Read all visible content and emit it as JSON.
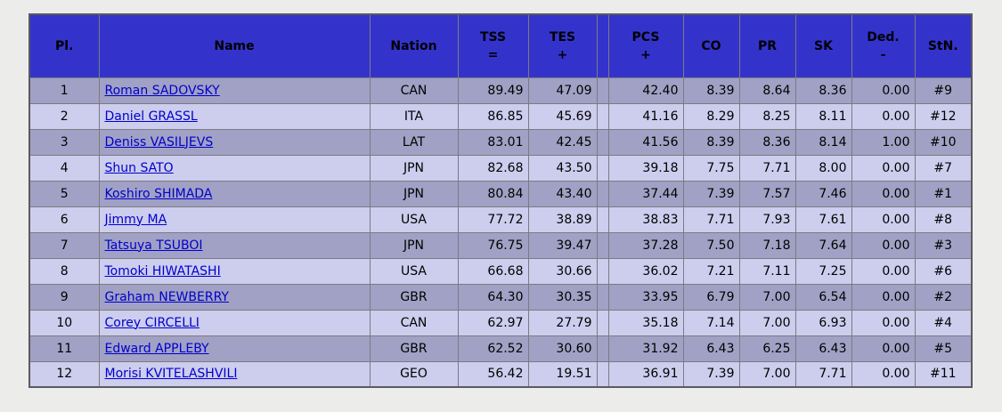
{
  "colors": {
    "header_bg": "#3333cc",
    "row_odd": "#a1a1c5",
    "row_even": "#cdcdee",
    "link": "#0000cc",
    "border": "#7b7b82",
    "page_bg": "#ececea"
  },
  "table": {
    "columns": [
      {
        "key": "pl",
        "label": "Pl.",
        "sub": "",
        "align": "ctr"
      },
      {
        "key": "name",
        "label": "Name",
        "sub": "",
        "align": "name"
      },
      {
        "key": "nation",
        "label": "Nation",
        "sub": "",
        "align": "ctr"
      },
      {
        "key": "tss",
        "label": "TSS",
        "sub": "=",
        "align": "num"
      },
      {
        "key": "tes",
        "label": "TES",
        "sub": "+",
        "align": "num"
      },
      {
        "key": "spacer",
        "label": "",
        "sub": "",
        "align": "ctr"
      },
      {
        "key": "pcs",
        "label": "PCS",
        "sub": "+",
        "align": "num"
      },
      {
        "key": "co",
        "label": "CO",
        "sub": "",
        "align": "num"
      },
      {
        "key": "pr",
        "label": "PR",
        "sub": "",
        "align": "num"
      },
      {
        "key": "sk",
        "label": "SK",
        "sub": "",
        "align": "num"
      },
      {
        "key": "ded",
        "label": "Ded.",
        "sub": "-",
        "align": "num"
      },
      {
        "key": "stn",
        "label": "StN.",
        "sub": "",
        "align": "ctr"
      }
    ],
    "rows": [
      {
        "pl": "1",
        "name": "Roman SADOVSKY",
        "nation": "CAN",
        "tss": "89.49",
        "tes": "47.09",
        "spacer": "",
        "pcs": "42.40",
        "co": "8.39",
        "pr": "8.64",
        "sk": "8.36",
        "ded": "0.00",
        "stn": "#9"
      },
      {
        "pl": "2",
        "name": "Daniel GRASSL",
        "nation": "ITA",
        "tss": "86.85",
        "tes": "45.69",
        "spacer": "",
        "pcs": "41.16",
        "co": "8.29",
        "pr": "8.25",
        "sk": "8.11",
        "ded": "0.00",
        "stn": "#12"
      },
      {
        "pl": "3",
        "name": "Deniss VASILJEVS",
        "nation": "LAT",
        "tss": "83.01",
        "tes": "42.45",
        "spacer": "",
        "pcs": "41.56",
        "co": "8.39",
        "pr": "8.36",
        "sk": "8.14",
        "ded": "1.00",
        "stn": "#10"
      },
      {
        "pl": "4",
        "name": "Shun SATO",
        "nation": "JPN",
        "tss": "82.68",
        "tes": "43.50",
        "spacer": "",
        "pcs": "39.18",
        "co": "7.75",
        "pr": "7.71",
        "sk": "8.00",
        "ded": "0.00",
        "stn": "#7"
      },
      {
        "pl": "5",
        "name": "Koshiro SHIMADA",
        "nation": "JPN",
        "tss": "80.84",
        "tes": "43.40",
        "spacer": "",
        "pcs": "37.44",
        "co": "7.39",
        "pr": "7.57",
        "sk": "7.46",
        "ded": "0.00",
        "stn": "#1"
      },
      {
        "pl": "6",
        "name": "Jimmy MA",
        "nation": "USA",
        "tss": "77.72",
        "tes": "38.89",
        "spacer": "",
        "pcs": "38.83",
        "co": "7.71",
        "pr": "7.93",
        "sk": "7.61",
        "ded": "0.00",
        "stn": "#8"
      },
      {
        "pl": "7",
        "name": "Tatsuya TSUBOI",
        "nation": "JPN",
        "tss": "76.75",
        "tes": "39.47",
        "spacer": "",
        "pcs": "37.28",
        "co": "7.50",
        "pr": "7.18",
        "sk": "7.64",
        "ded": "0.00",
        "stn": "#3"
      },
      {
        "pl": "8",
        "name": "Tomoki HIWATASHI",
        "nation": "USA",
        "tss": "66.68",
        "tes": "30.66",
        "spacer": "",
        "pcs": "36.02",
        "co": "7.21",
        "pr": "7.11",
        "sk": "7.25",
        "ded": "0.00",
        "stn": "#6"
      },
      {
        "pl": "9",
        "name": "Graham NEWBERRY",
        "nation": "GBR",
        "tss": "64.30",
        "tes": "30.35",
        "spacer": "",
        "pcs": "33.95",
        "co": "6.79",
        "pr": "7.00",
        "sk": "6.54",
        "ded": "0.00",
        "stn": "#2"
      },
      {
        "pl": "10",
        "name": "Corey CIRCELLI",
        "nation": "CAN",
        "tss": "62.97",
        "tes": "27.79",
        "spacer": "",
        "pcs": "35.18",
        "co": "7.14",
        "pr": "7.00",
        "sk": "6.93",
        "ded": "0.00",
        "stn": "#4"
      },
      {
        "pl": "11",
        "name": "Edward APPLEBY",
        "nation": "GBR",
        "tss": "62.52",
        "tes": "30.60",
        "spacer": "",
        "pcs": "31.92",
        "co": "6.43",
        "pr": "6.25",
        "sk": "6.43",
        "ded": "0.00",
        "stn": "#5"
      },
      {
        "pl": "12",
        "name": "Morisi KVITELASHVILI",
        "nation": "GEO",
        "tss": "56.42",
        "tes": "19.51",
        "spacer": "",
        "pcs": "36.91",
        "co": "7.39",
        "pr": "7.00",
        "sk": "7.71",
        "ded": "0.00",
        "stn": "#11"
      }
    ]
  }
}
